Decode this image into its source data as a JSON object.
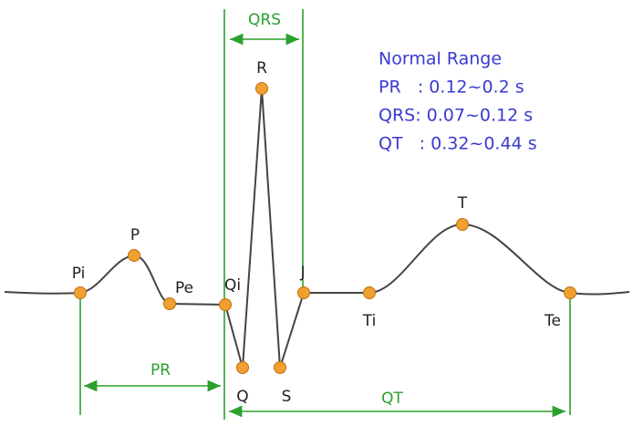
{
  "points": [
    {
      "label": "Pi"
    },
    {
      "label": "P"
    },
    {
      "label": "Pe"
    },
    {
      "label": "Qi"
    },
    {
      "label": "Q"
    },
    {
      "label": "R"
    },
    {
      "label": "S"
    },
    {
      "label": "J"
    },
    {
      "label": "Ti"
    },
    {
      "label": "T"
    },
    {
      "label": "Te"
    }
  ],
  "intervals": [
    {
      "label": "QRS"
    },
    {
      "label": "PR"
    },
    {
      "label": "QT"
    }
  ],
  "normal_range": {
    "title": "Normal Range",
    "rows": [
      "PR   : 0.12~0.2 s",
      "QRS: 0.07~0.12 s",
      "QT   : 0.32~0.44 s"
    ]
  }
}
